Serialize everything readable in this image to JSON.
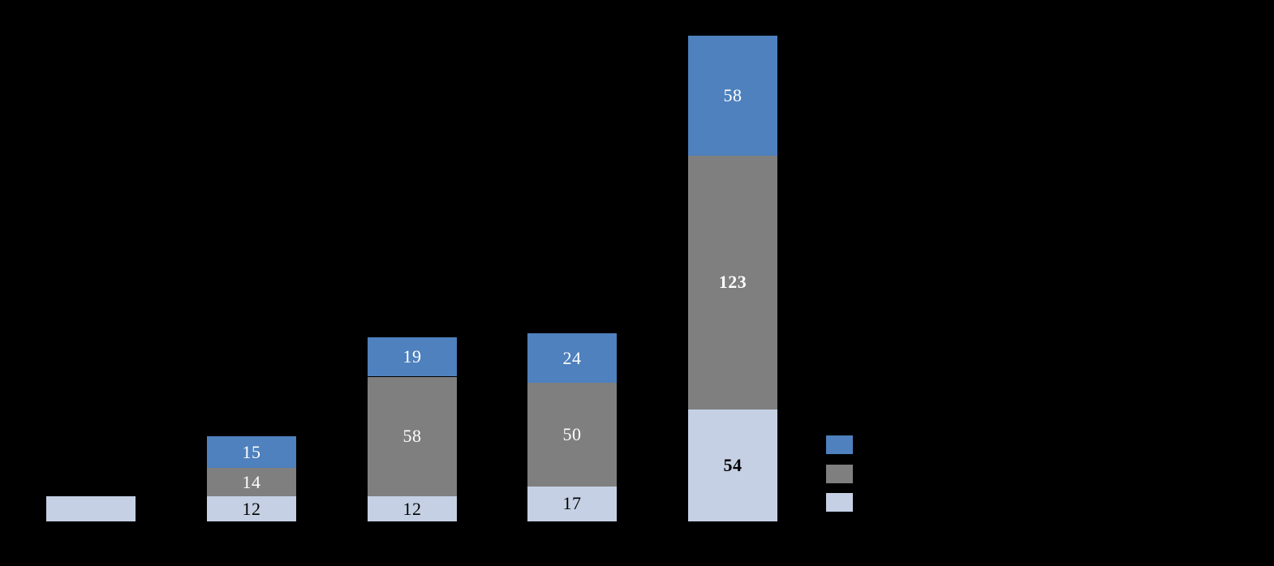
{
  "chart_data": {
    "type": "bar",
    "variant": "stacked-column",
    "title": "",
    "xlabel": "",
    "ylabel": "",
    "axes_visible": false,
    "gridlines": false,
    "background_color": "#000000",
    "categories": [
      "",
      "",
      "",
      "",
      ""
    ],
    "stack_order_bottom_to_top": [
      "light-blue",
      "gray",
      "blue"
    ],
    "series": [
      {
        "name": "blue",
        "color": "#4E81BD",
        "label_text_color": "#FFFFFF",
        "values": [
          0,
          15,
          19,
          24,
          58
        ]
      },
      {
        "name": "gray",
        "color": "#7F7F7F",
        "label_text_color": "#FFFFFF",
        "values": [
          0,
          14,
          58,
          50,
          123
        ]
      },
      {
        "name": "light-blue",
        "color": "#C5D0E4",
        "label_text_color": "#000000",
        "values": [
          12,
          12,
          12,
          17,
          54
        ]
      }
    ],
    "data_labels": {
      "blue": [
        "",
        "15",
        "19",
        "24",
        "58"
      ],
      "gray": [
        "",
        "14",
        "58",
        "50",
        "123"
      ],
      "light-blue": [
        "",
        "12",
        "12",
        "17",
        "54"
      ]
    },
    "bold_label_indices": {
      "blue": [],
      "gray": [
        4
      ],
      "light-blue": [
        4
      ]
    },
    "legend": {
      "position": "right",
      "entries": [
        {
          "series": "blue",
          "label": ""
        },
        {
          "series": "gray",
          "label": ""
        },
        {
          "series": "light-blue",
          "label": ""
        }
      ]
    }
  }
}
